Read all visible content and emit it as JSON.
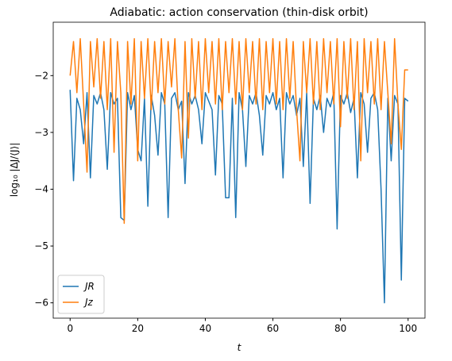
{
  "chart_data": {
    "type": "line",
    "title": "Adiabatic: action conservation (thin-disk orbit)",
    "x_label": "t",
    "y_label": "log₁₀ |ΔJ/⟨J⟩|",
    "x": [
      0,
      1,
      2,
      3,
      4,
      5,
      6,
      7,
      8,
      9,
      10,
      11,
      12,
      13,
      14,
      15,
      16,
      17,
      18,
      19,
      20,
      21,
      22,
      23,
      24,
      25,
      26,
      27,
      28,
      29,
      30,
      31,
      32,
      33,
      34,
      35,
      36,
      37,
      38,
      39,
      40,
      41,
      42,
      43,
      44,
      45,
      46,
      47,
      48,
      49,
      50,
      51,
      52,
      53,
      54,
      55,
      56,
      57,
      58,
      59,
      60,
      61,
      62,
      63,
      64,
      65,
      66,
      67,
      68,
      69,
      70,
      71,
      72,
      73,
      74,
      75,
      76,
      77,
      78,
      79,
      80,
      81,
      82,
      83,
      84,
      85,
      86,
      87,
      88,
      89,
      90,
      91,
      92,
      93,
      94,
      95,
      96,
      97,
      98,
      99,
      100
    ],
    "series": [
      {
        "name": "JR",
        "color": "#1f77b4",
        "values": [
          -2.25,
          -3.85,
          -2.4,
          -2.6,
          -3.2,
          -2.3,
          -3.8,
          -2.35,
          -2.5,
          -2.3,
          -2.6,
          -3.65,
          -2.3,
          -2.5,
          -2.4,
          -4.5,
          -4.55,
          -2.3,
          -2.6,
          -2.35,
          -3.3,
          -3.5,
          -2.4,
          -4.3,
          -2.35,
          -2.7,
          -3.4,
          -2.3,
          -2.5,
          -4.5,
          -2.4,
          -2.3,
          -2.6,
          -2.45,
          -3.9,
          -2.3,
          -2.5,
          -2.35,
          -2.6,
          -3.2,
          -2.3,
          -2.45,
          -2.6,
          -3.75,
          -2.35,
          -2.5,
          -4.15,
          -4.15,
          -2.4,
          -4.5,
          -2.3,
          -2.6,
          -3.6,
          -2.35,
          -2.5,
          -2.3,
          -2.7,
          -3.4,
          -2.35,
          -2.5,
          -2.3,
          -2.6,
          -2.4,
          -3.8,
          -2.3,
          -2.5,
          -2.35,
          -2.7,
          -2.4,
          -3.6,
          -2.3,
          -4.25,
          -2.4,
          -2.6,
          -2.35,
          -3.0,
          -2.4,
          -2.55,
          -2.3,
          -4.7,
          -2.35,
          -2.5,
          -2.3,
          -2.65,
          -2.4,
          -3.8,
          -2.3,
          -2.5,
          -3.35,
          -2.4,
          -2.3,
          -2.6,
          -4.0,
          -6.0,
          -2.4,
          -3.5,
          -2.35,
          -2.5,
          -5.6,
          -2.4,
          -2.45
        ]
      },
      {
        "name": "Jz",
        "color": "#ff7f0e",
        "values": [
          -2.0,
          -1.4,
          -2.3,
          -1.35,
          -2.5,
          -3.7,
          -1.4,
          -2.2,
          -1.35,
          -2.4,
          -1.4,
          -2.6,
          -1.35,
          -3.35,
          -1.4,
          -2.3,
          -4.6,
          -1.4,
          -2.5,
          -1.35,
          -3.5,
          -1.4,
          -2.4,
          -1.35,
          -2.6,
          -1.4,
          -2.3,
          -1.35,
          -2.5,
          -1.4,
          -2.2,
          -1.35,
          -2.6,
          -3.45,
          -1.4,
          -3.1,
          -1.35,
          -2.4,
          -1.4,
          -2.6,
          -1.35,
          -2.3,
          -1.4,
          -2.5,
          -1.35,
          -2.6,
          -1.4,
          -2.3,
          -1.35,
          -2.5,
          -1.4,
          -2.6,
          -1.35,
          -2.3,
          -1.4,
          -2.5,
          -1.35,
          -2.6,
          -1.4,
          -2.3,
          -1.35,
          -2.5,
          -1.4,
          -2.6,
          -1.35,
          -2.4,
          -1.4,
          -2.6,
          -3.5,
          -1.4,
          -2.3,
          -1.35,
          -2.5,
          -1.4,
          -2.6,
          -1.35,
          -2.3,
          -1.4,
          -2.5,
          -1.35,
          -2.9,
          -1.4,
          -2.4,
          -1.35,
          -2.6,
          -1.4,
          -3.5,
          -1.35,
          -2.3,
          -1.4,
          -2.5,
          -1.35,
          -2.6,
          -1.4,
          -2.3,
          -3.2,
          -1.35,
          -2.5,
          -3.3,
          -1.9,
          -1.9
        ]
      }
    ],
    "xlim": [
      -5,
      105
    ],
    "xticks": [
      0,
      20,
      40,
      60,
      80,
      100
    ],
    "ylim": [
      -6.27,
      -1.06
    ],
    "yticks": [
      {
        "value": -6,
        "label": "−6"
      },
      {
        "value": -5,
        "label": "−5"
      },
      {
        "value": -4,
        "label": "−4"
      },
      {
        "value": -3,
        "label": "−3"
      },
      {
        "value": -2,
        "label": "−2"
      }
    ],
    "legend": "lower left",
    "grid": false
  }
}
